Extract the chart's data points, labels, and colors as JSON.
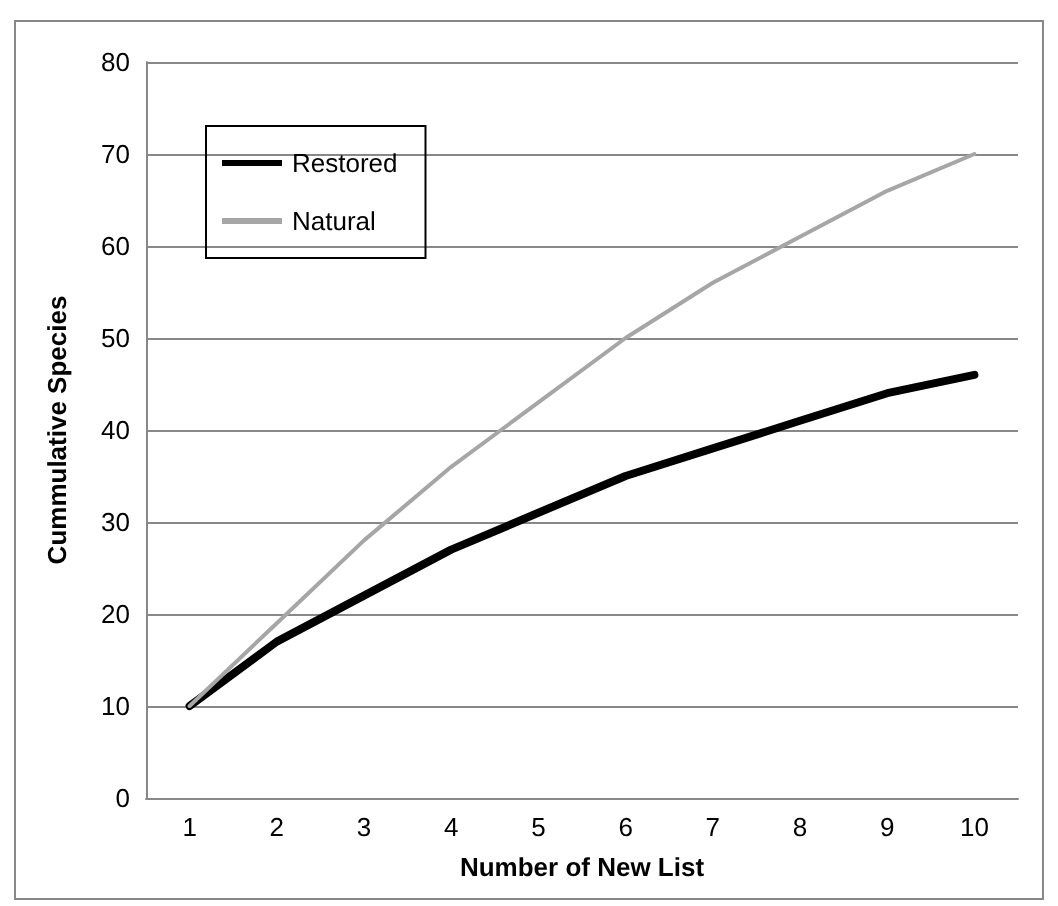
{
  "chart_data": {
    "type": "line",
    "xlabel": "Number of New List",
    "ylabel": "Cummulative Species",
    "categories": [
      "1",
      "2",
      "3",
      "4",
      "5",
      "6",
      "7",
      "8",
      "9",
      "10"
    ],
    "series": [
      {
        "name": "Restored",
        "color": "#000000",
        "values": [
          10,
          17,
          22,
          27,
          31,
          35,
          38,
          41,
          44,
          46
        ]
      },
      {
        "name": "Natural",
        "color": "#a6a6a6",
        "values": [
          10,
          19,
          28,
          36,
          43,
          50,
          56,
          61,
          66,
          70
        ]
      }
    ],
    "ylim": [
      0,
      80
    ],
    "yticks": [
      0,
      10,
      20,
      30,
      40,
      50,
      60,
      70,
      80
    ],
    "grid": "y",
    "legend": "top left",
    "marker": "none",
    "line_style": "solid"
  }
}
